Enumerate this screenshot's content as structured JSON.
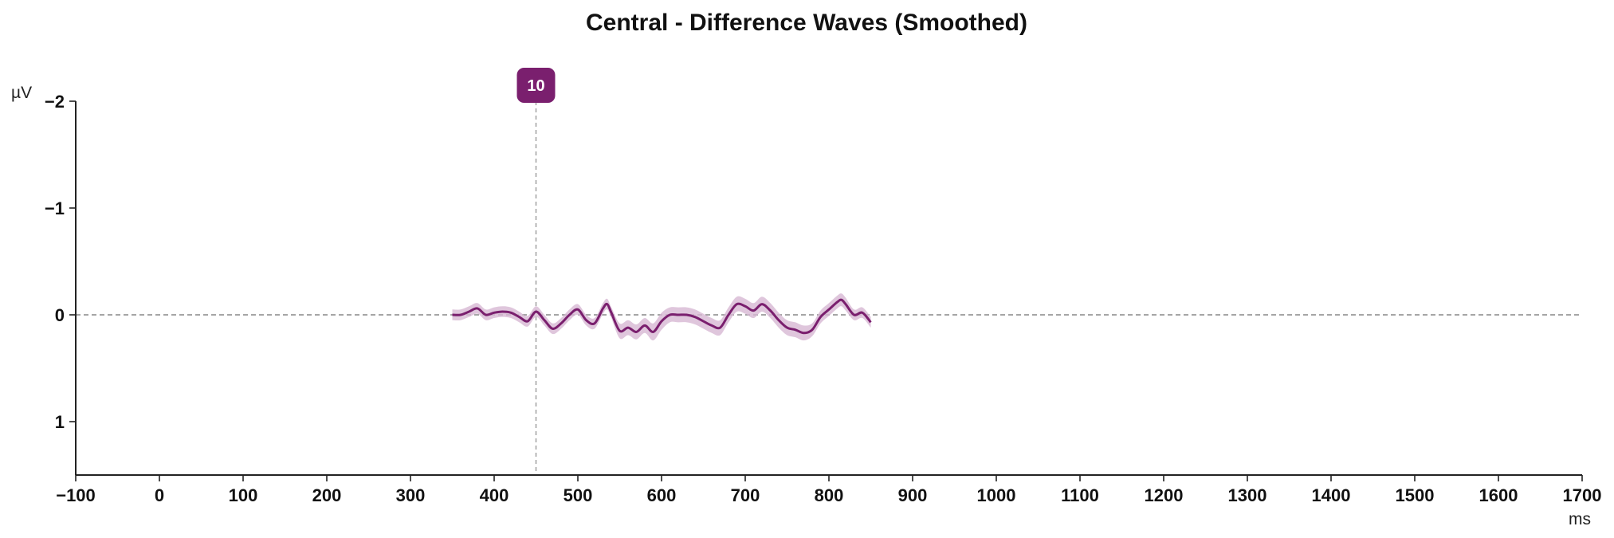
{
  "chart_data": {
    "type": "line",
    "title": "Central - Difference Waves (Smoothed)",
    "xlabel": "ms",
    "ylabel": "µV",
    "xlim": [
      -100,
      1700
    ],
    "ylim": [
      -2,
      1.5
    ],
    "y_inverted": true,
    "x_ticks": [
      -100,
      0,
      100,
      200,
      300,
      400,
      500,
      600,
      700,
      800,
      900,
      1000,
      1100,
      1200,
      1300,
      1400,
      1500,
      1600,
      1700
    ],
    "x_tick_labels": [
      "−100",
      "0",
      "100",
      "200",
      "300",
      "400",
      "500",
      "600",
      "700",
      "800",
      "900",
      "1000",
      "1100",
      "1200",
      "1300",
      "1400",
      "1500",
      "1600",
      "1700"
    ],
    "y_ticks": [
      -2,
      -1,
      0,
      1
    ],
    "y_tick_labels": [
      "−2",
      "−1",
      "0",
      "1"
    ],
    "zero_line": 0,
    "grid": false,
    "colors": {
      "series": "#7a1f6e",
      "band": "#d7b8d3",
      "marker": "#7a1f6e",
      "zero_line": "#888888",
      "marker_line": "#9a9a9a",
      "axis": "#222222"
    },
    "marker": {
      "x": 450,
      "label": "10"
    },
    "series": [
      {
        "x": [
          350,
          360,
          370,
          380,
          390,
          400,
          410,
          420,
          430,
          440,
          450,
          460,
          470,
          480,
          490,
          500,
          510,
          520,
          530,
          535,
          540,
          550,
          560,
          570,
          580,
          590,
          600,
          610,
          620,
          630,
          640,
          650,
          660,
          670,
          680,
          690,
          700,
          710,
          720,
          730,
          740,
          750,
          760,
          770,
          780,
          790,
          800,
          810,
          815,
          820,
          830,
          840,
          850
        ],
        "values": [
          0.0,
          0.0,
          -0.03,
          -0.06,
          0.0,
          -0.02,
          -0.03,
          -0.02,
          0.02,
          0.06,
          -0.03,
          0.05,
          0.13,
          0.08,
          0.0,
          -0.05,
          0.05,
          0.08,
          -0.06,
          -0.1,
          -0.02,
          0.15,
          0.12,
          0.16,
          0.1,
          0.16,
          0.06,
          0.0,
          0.0,
          0.0,
          0.02,
          0.06,
          0.1,
          0.12,
          0.0,
          -0.1,
          -0.08,
          -0.04,
          -0.1,
          -0.04,
          0.05,
          0.12,
          0.14,
          0.17,
          0.14,
          0.02,
          -0.05,
          -0.12,
          -0.14,
          -0.1,
          0.0,
          -0.02,
          0.07
        ],
        "band": [
          0.05,
          0.05,
          0.05,
          0.05,
          0.05,
          0.05,
          0.05,
          0.05,
          0.05,
          0.05,
          0.05,
          0.05,
          0.05,
          0.05,
          0.05,
          0.05,
          0.05,
          0.05,
          0.05,
          0.05,
          0.05,
          0.07,
          0.07,
          0.07,
          0.07,
          0.08,
          0.08,
          0.07,
          0.07,
          0.07,
          0.07,
          0.07,
          0.07,
          0.07,
          0.07,
          0.07,
          0.07,
          0.07,
          0.07,
          0.07,
          0.07,
          0.07,
          0.07,
          0.07,
          0.06,
          0.06,
          0.06,
          0.06,
          0.06,
          0.06,
          0.05,
          0.05,
          0.05
        ]
      }
    ]
  }
}
